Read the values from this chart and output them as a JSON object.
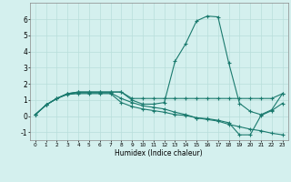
{
  "title": "",
  "xlabel": "Humidex (Indice chaleur)",
  "xlim": [
    -0.5,
    23.5
  ],
  "ylim": [
    -1.5,
    7.0
  ],
  "yticks": [
    -1,
    0,
    1,
    2,
    3,
    4,
    5,
    6
  ],
  "xticks": [
    0,
    1,
    2,
    3,
    4,
    5,
    6,
    7,
    8,
    9,
    10,
    11,
    12,
    13,
    14,
    15,
    16,
    17,
    18,
    19,
    20,
    21,
    22,
    23
  ],
  "bg_color": "#d4f0ee",
  "grid_color": "#b8deda",
  "line_color": "#1a7a6e",
  "lines": [
    {
      "x": [
        0,
        1,
        2,
        3,
        4,
        5,
        6,
        7,
        8,
        9,
        10,
        11,
        12,
        13,
        14,
        15,
        16,
        17,
        18,
        19,
        20,
        21,
        22,
        23
      ],
      "y": [
        0.1,
        0.7,
        1.1,
        1.4,
        1.5,
        1.5,
        1.5,
        1.5,
        1.5,
        1.0,
        0.75,
        0.75,
        0.85,
        3.4,
        4.5,
        5.9,
        6.2,
        6.15,
        3.3,
        0.8,
        0.3,
        0.1,
        0.4,
        1.4
      ]
    },
    {
      "x": [
        0,
        1,
        2,
        3,
        4,
        5,
        6,
        7,
        8,
        9,
        10,
        11,
        12,
        13,
        14,
        15,
        16,
        17,
        18,
        19,
        20,
        21,
        22,
        23
      ],
      "y": [
        0.1,
        0.7,
        1.1,
        1.4,
        1.45,
        1.45,
        1.45,
        1.45,
        1.1,
        0.85,
        0.65,
        0.55,
        0.45,
        0.25,
        0.1,
        -0.1,
        -0.2,
        -0.3,
        -0.5,
        -0.65,
        -0.8,
        -0.9,
        -1.05,
        -1.15
      ]
    },
    {
      "x": [
        0,
        1,
        2,
        3,
        4,
        5,
        6,
        7,
        8,
        9,
        10,
        11,
        12,
        13,
        14,
        15,
        16,
        17,
        18,
        19,
        20,
        21,
        22,
        23
      ],
      "y": [
        0.1,
        0.7,
        1.1,
        1.4,
        1.5,
        1.5,
        1.5,
        1.5,
        1.5,
        1.1,
        1.1,
        1.1,
        1.1,
        1.1,
        1.1,
        1.1,
        1.1,
        1.1,
        1.1,
        1.1,
        1.1,
        1.1,
        1.1,
        1.4
      ]
    },
    {
      "x": [
        0,
        1,
        2,
        3,
        4,
        5,
        6,
        7,
        8,
        9,
        10,
        11,
        12,
        13,
        14,
        15,
        16,
        17,
        18,
        19,
        20,
        21,
        22,
        23
      ],
      "y": [
        0.1,
        0.7,
        1.1,
        1.35,
        1.4,
        1.4,
        1.4,
        1.4,
        0.85,
        0.6,
        0.45,
        0.35,
        0.25,
        0.1,
        0.05,
        -0.1,
        -0.15,
        -0.25,
        -0.4,
        -1.15,
        -1.15,
        0.05,
        0.35,
        0.8
      ]
    }
  ]
}
